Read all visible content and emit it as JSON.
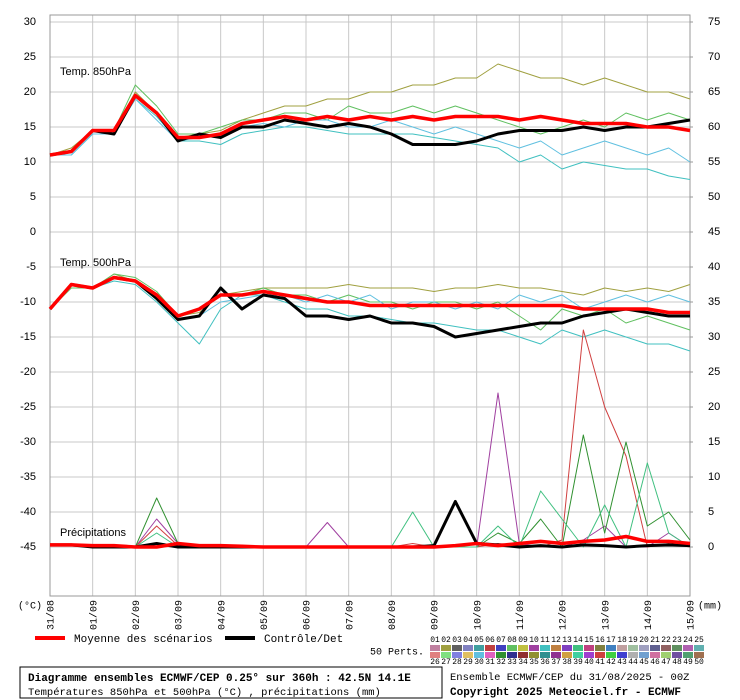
{
  "chart_data": {
    "type": "line",
    "grid": true,
    "xlim": [
      0,
      15
    ],
    "xticks": [
      {
        "value": 0,
        "label": "31/08"
      },
      {
        "value": 1,
        "label": "01/09"
      },
      {
        "value": 2,
        "label": "02/09"
      },
      {
        "value": 3,
        "label": "03/09"
      },
      {
        "value": 4,
        "label": "04/09"
      },
      {
        "value": 5,
        "label": "05/09"
      },
      {
        "value": 6,
        "label": "06/09"
      },
      {
        "value": 7,
        "label": "07/09"
      },
      {
        "value": 8,
        "label": "08/09"
      },
      {
        "value": 9,
        "label": "09/09"
      },
      {
        "value": 10,
        "label": "10/09"
      },
      {
        "value": 11,
        "label": "11/09"
      },
      {
        "value": 12,
        "label": "12/09"
      },
      {
        "value": 13,
        "label": "13/09"
      },
      {
        "value": 14,
        "label": "14/09"
      },
      {
        "value": 15,
        "label": "15/09"
      }
    ],
    "ylim": [
      -52,
      31
    ],
    "yticks": [
      30,
      25,
      20,
      15,
      10,
      5,
      0,
      -5,
      -10,
      -15,
      -20,
      -25,
      -30,
      -35,
      -40,
      -45
    ],
    "y2lim": [
      -7,
      76
    ],
    "y2ticks": [
      75,
      70,
      65,
      60,
      55,
      50,
      45,
      40,
      35,
      30,
      25,
      20,
      15,
      10,
      5,
      0
    ],
    "y_unit": "(°C)",
    "y2_unit": "(mm)",
    "x": [
      0,
      0.5,
      1,
      1.5,
      2,
      2.5,
      3,
      3.5,
      4,
      4.5,
      5,
      5.5,
      6,
      6.5,
      7,
      7.5,
      8,
      8.5,
      9,
      9.5,
      10,
      10.5,
      11,
      11.5,
      12,
      12.5,
      13,
      13.5,
      14,
      14.5,
      15
    ],
    "mean_label": "Moyenne des scénarios",
    "mean_color": "#ff0000",
    "control_label": "Contrôle/Det",
    "control_color": "#000000",
    "members_label": "50 Perts.",
    "members": [
      {
        "name": "01",
        "color": "#c080a0"
      },
      {
        "name": "02",
        "color": "#a0a040"
      },
      {
        "name": "03",
        "color": "#606060"
      },
      {
        "name": "04",
        "color": "#8080c0"
      },
      {
        "name": "05",
        "color": "#40a0a0"
      },
      {
        "name": "06",
        "color": "#c04040"
      },
      {
        "name": "07",
        "color": "#4040c0"
      },
      {
        "name": "08",
        "color": "#60c060"
      },
      {
        "name": "09",
        "color": "#c0c040"
      },
      {
        "name": "10",
        "color": "#a040a0"
      },
      {
        "name": "11",
        "color": "#40c0c0"
      },
      {
        "name": "12",
        "color": "#c08040"
      },
      {
        "name": "13",
        "color": "#8040c0"
      },
      {
        "name": "14",
        "color": "#40c080"
      },
      {
        "name": "15",
        "color": "#c04080"
      },
      {
        "name": "16",
        "color": "#808040"
      },
      {
        "name": "17",
        "color": "#4080c0"
      },
      {
        "name": "18",
        "color": "#c0a0a0"
      },
      {
        "name": "19",
        "color": "#a0c0a0"
      },
      {
        "name": "20",
        "color": "#a0a0c0"
      },
      {
        "name": "21",
        "color": "#606090"
      },
      {
        "name": "22",
        "color": "#906060"
      },
      {
        "name": "23",
        "color": "#609060"
      },
      {
        "name": "24",
        "color": "#b060b0"
      },
      {
        "name": "25",
        "color": "#60b0b0"
      },
      {
        "name": "26",
        "color": "#e08080"
      },
      {
        "name": "27",
        "color": "#80e080"
      },
      {
        "name": "28",
        "color": "#8080e0"
      },
      {
        "name": "29",
        "color": "#e0c060"
      },
      {
        "name": "30",
        "color": "#60c0e0"
      },
      {
        "name": "31",
        "color": "#e060c0"
      },
      {
        "name": "32",
        "color": "#309030"
      },
      {
        "name": "33",
        "color": "#303090"
      },
      {
        "name": "34",
        "color": "#903030"
      },
      {
        "name": "35",
        "color": "#909030"
      },
      {
        "name": "36",
        "color": "#309090"
      },
      {
        "name": "37",
        "color": "#903090"
      },
      {
        "name": "38",
        "color": "#d0a040"
      },
      {
        "name": "39",
        "color": "#40d0a0"
      },
      {
        "name": "40",
        "color": "#a040d0"
      },
      {
        "name": "41",
        "color": "#d04040"
      },
      {
        "name": "42",
        "color": "#40d040"
      },
      {
        "name": "43",
        "color": "#4040d0"
      },
      {
        "name": "44",
        "color": "#b0b0b0"
      },
      {
        "name": "45",
        "color": "#70a0d0"
      },
      {
        "name": "46",
        "color": "#d070a0"
      },
      {
        "name": "47",
        "color": "#a0d070"
      },
      {
        "name": "48",
        "color": "#7050a0"
      },
      {
        "name": "49",
        "color": "#50a070"
      },
      {
        "name": "50",
        "color": "#a07050"
      }
    ],
    "panels": [
      {
        "label": "Temp. 850hPa",
        "axis": "y",
        "mean": [
          11,
          11.5,
          14.5,
          14.5,
          19.5,
          17,
          13.5,
          13.5,
          14,
          15.5,
          16,
          16.5,
          16,
          16.5,
          16,
          16.5,
          16,
          16.5,
          16,
          16.5,
          16.5,
          16.5,
          16,
          16.5,
          16,
          15.5,
          15.5,
          15.5,
          15,
          15,
          14.5
        ],
        "control": [
          11,
          11.5,
          14.5,
          14,
          19.5,
          17,
          13,
          14,
          13.5,
          15,
          15,
          16,
          15.5,
          15,
          15.5,
          15,
          14,
          12.5,
          12.5,
          12.5,
          13,
          14,
          14.5,
          14.5,
          14.5,
          15,
          14.5,
          15,
          15,
          15.5,
          16
        ],
        "members": [
          {
            "member": 1,
            "values": [
              11,
              12,
              14.5,
              14.5,
              20,
              17,
              13.5,
              14,
              14.5,
              16,
              17,
              18,
              18,
              19,
              19,
              20,
              20,
              21,
              21,
              22,
              22,
              24,
              23,
              22,
              22,
              21,
              22,
              21,
              20,
              20,
              19
            ]
          },
          {
            "member": 10,
            "values": [
              11,
              11,
              14,
              14,
              19,
              16.5,
              13,
              13,
              12.5,
              14,
              14.5,
              15,
              15,
              14.5,
              14,
              14,
              14,
              14,
              13.5,
              13,
              12.5,
              12,
              10,
              11,
              9,
              10,
              9.5,
              9,
              9,
              8,
              7.5
            ]
          },
          {
            "member": 7,
            "values": [
              11,
              11.5,
              14.5,
              14.5,
              21,
              18,
              14,
              14,
              15,
              16,
              16,
              17,
              17,
              16,
              18,
              17,
              17,
              18,
              17,
              18,
              17,
              16,
              15,
              14,
              15,
              16,
              15,
              17,
              16,
              17,
              16
            ]
          },
          {
            "member": 29,
            "values": [
              11,
              11,
              14,
              14,
              19,
              16,
              13,
              13.5,
              14,
              15,
              15.5,
              15,
              16,
              16,
              15,
              15,
              16,
              15,
              14,
              15,
              14,
              13,
              12,
              13,
              11,
              12,
              13,
              12,
              11,
              12,
              10
            ]
          }
        ]
      },
      {
        "label": "Temp. 500hPa",
        "axis": "y",
        "mean": [
          -11,
          -7.5,
          -8,
          -6.5,
          -7,
          -9,
          -12,
          -11,
          -9,
          -9,
          -8.5,
          -9,
          -9.5,
          -10,
          -10,
          -10.5,
          -10.5,
          -10.5,
          -10.5,
          -10.5,
          -10.5,
          -10.5,
          -10.5,
          -10.5,
          -10.5,
          -11,
          -11,
          -11,
          -11,
          -11.5,
          -11.5
        ],
        "control": [
          -11,
          -7.5,
          -8,
          -6.5,
          -7,
          -9.5,
          -12.5,
          -12,
          -8,
          -11,
          -9,
          -9.5,
          -12,
          -12,
          -12.5,
          -12,
          -13,
          -13,
          -13.5,
          -15,
          -14.5,
          -14,
          -13.5,
          -13,
          -13,
          -12,
          -11.5,
          -11,
          -11.5,
          -12,
          -12
        ],
        "members": [
          {
            "member": 1,
            "values": [
              -11,
              -7.5,
              -8,
              -6,
              -7,
              -9,
              -12,
              -11.5,
              -9,
              -8.5,
              -8,
              -8,
              -8,
              -8,
              -7.5,
              -8,
              -8,
              -8,
              -8.5,
              -8,
              -8,
              -7.5,
              -8,
              -8,
              -8.5,
              -9,
              -8,
              -8.5,
              -8,
              -8.5,
              -7.5
            ]
          },
          {
            "member": 10,
            "values": [
              -11,
              -7.5,
              -8,
              -7,
              -7.5,
              -10,
              -13,
              -16,
              -11,
              -9,
              -9,
              -10,
              -11,
              -11,
              -12,
              -12,
              -12.5,
              -13,
              -13,
              -13.5,
              -14,
              -14,
              -15,
              -16,
              -14,
              -15,
              -14,
              -15,
              -16,
              -16,
              -17
            ]
          },
          {
            "member": 7,
            "values": [
              -11,
              -8,
              -8,
              -6,
              -6.5,
              -8.5,
              -12,
              -11,
              -9,
              -9,
              -8,
              -9,
              -9,
              -10,
              -9,
              -10,
              -10,
              -11,
              -10,
              -10,
              -11,
              -10,
              -12,
              -14,
              -11,
              -12,
              -11,
              -13,
              -12,
              -13,
              -14
            ]
          },
          {
            "member": 29,
            "values": [
              -11,
              -7.5,
              -8,
              -6.5,
              -7,
              -9,
              -12.5,
              -12,
              -10,
              -9.5,
              -9,
              -9,
              -10,
              -9,
              -10,
              -9,
              -11,
              -10,
              -10,
              -11,
              -10,
              -11,
              -9,
              -10,
              -9,
              -11,
              -10,
              -9,
              -10,
              -9,
              -10
            ]
          }
        ]
      },
      {
        "label": "Précipitations",
        "axis": "y2",
        "mean": [
          0.3,
          0.3,
          0.2,
          0.2,
          0,
          0,
          0.5,
          0.2,
          0.2,
          0.1,
          0,
          0,
          0,
          0,
          0,
          0,
          0,
          0,
          0,
          0.2,
          0.5,
          0.2,
          0.5,
          0.8,
          0.5,
          0.8,
          1,
          1.5,
          0.8,
          0.8,
          0.5
        ],
        "control": [
          0.3,
          0.3,
          0,
          0,
          0,
          0.5,
          0,
          0,
          0,
          0,
          0,
          0,
          0,
          0,
          0,
          0,
          0,
          0,
          0.2,
          6.5,
          0.5,
          0.3,
          0,
          0.2,
          0,
          0.3,
          0.2,
          0,
          0.2,
          0.3,
          0.2
        ],
        "members": [
          {
            "member": 9,
            "values": [
              0.3,
              0.3,
              0,
              0,
              0,
              4,
              0.5,
              0,
              0,
              0,
              0,
              0,
              0,
              3.5,
              0,
              0,
              0,
              0,
              0,
              0,
              0,
              22,
              0.5,
              0,
              0,
              1,
              3,
              0,
              0,
              2,
              0
            ]
          },
          {
            "member": 40,
            "values": [
              0.3,
              0.3,
              0,
              0,
              0,
              3,
              0.2,
              0,
              0,
              0,
              0,
              0,
              0,
              0,
              0,
              0,
              0,
              0.5,
              0,
              0,
              0,
              0.5,
              0.3,
              0,
              1,
              31,
              20,
              13,
              0,
              0.5,
              0
            ]
          },
          {
            "member": 31,
            "values": [
              0.3,
              0.3,
              0,
              0,
              0,
              7,
              0.5,
              0,
              0,
              0,
              0,
              0,
              0,
              0,
              0,
              0,
              0,
              0,
              0,
              0,
              0,
              2,
              0.5,
              4,
              0,
              16,
              2,
              15,
              3,
              5,
              1
            ]
          },
          {
            "member": 13,
            "values": [
              0.3,
              0.3,
              0,
              0,
              0,
              2,
              0,
              0,
              0,
              0,
              0,
              0,
              0,
              0,
              0,
              0,
              0,
              5,
              0,
              0,
              0,
              3,
              0,
              8,
              4,
              0,
              6,
              0,
              12,
              2,
              0
            ]
          }
        ]
      }
    ],
    "footer_title": "Diagramme ensembles ECMWF/CEP 0.25° sur 360h : 42.5N 14.1E",
    "footer_subtitle": "Températures 850hPa et 500hPa (°C) , précipitations (mm)",
    "run_label": "Ensemble ECMWF/CEP du 31/08/2025 - 00Z",
    "copyright": "Copyright 2025 Meteociel.fr - ECMWF"
  }
}
